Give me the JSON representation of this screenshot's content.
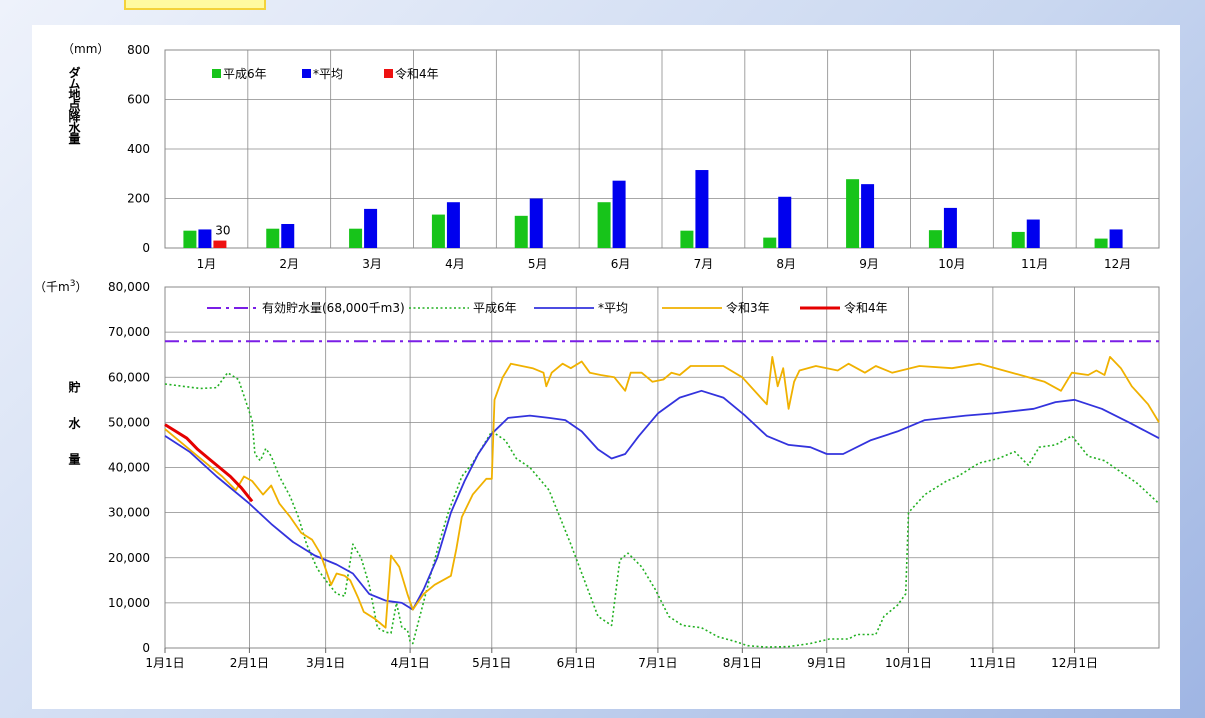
{
  "chart_data": [
    {
      "type": "bar",
      "ylabel": "ダム地点降水量",
      "yunit": "（mm）",
      "ylim": [
        0,
        800
      ],
      "yticks": [
        "0",
        "200",
        "400",
        "600",
        "800"
      ],
      "categories": [
        "1月",
        "2月",
        "3月",
        "4月",
        "5月",
        "6月",
        "7月",
        "8月",
        "9月",
        "10月",
        "11月",
        "12月"
      ],
      "series": [
        {
          "name": "平成6年",
          "color": "#17c41a",
          "values": [
            70,
            78,
            78,
            135,
            130,
            185,
            70,
            42,
            278,
            72,
            65,
            38
          ]
        },
        {
          "name": "*平均",
          "color": "#0000ee",
          "values": [
            75,
            97,
            158,
            185,
            200,
            272,
            315,
            207,
            258,
            162,
            115,
            75
          ]
        },
        {
          "name": "令和4年",
          "color": "#ee1111",
          "values": [
            30,
            null,
            null,
            null,
            null,
            null,
            null,
            null,
            null,
            null,
            null,
            null
          ]
        }
      ],
      "data_labels": [
        {
          "series": "令和4年",
          "category": "1月",
          "text": "30"
        }
      ],
      "grid": true,
      "legend_position": "top-left"
    },
    {
      "type": "line",
      "ylabel": "貯水量",
      "yunit_prefix": "（千m",
      "yunit_sup": "3",
      "yunit_suffix": "）",
      "ylim": [
        0,
        80000
      ],
      "yticks": [
        "0",
        "10,000",
        "20,000",
        "30,000",
        "40,000",
        "50,000",
        "60,000",
        "70,000",
        "80,000"
      ],
      "xticks": [
        "1月1日",
        "2月1日",
        "3月1日",
        "4月1日",
        "5月1日",
        "6月1日",
        "7月1日",
        "8月1日",
        "9月1日",
        "10月1日",
        "11月1日",
        "12月1日"
      ],
      "xtick_days": [
        1,
        32,
        60,
        91,
        121,
        152,
        182,
        213,
        244,
        274,
        305,
        335
      ],
      "xlim_days": [
        1,
        366
      ],
      "grid": true,
      "legend_position": "top",
      "series": [
        {
          "name": "有効貯水量(68,000千m3)",
          "color": "#7a1ee6",
          "style": "dashdot",
          "points": [
            [
              1,
              68000
            ],
            [
              366,
              68000
            ]
          ]
        },
        {
          "name": "平成6年",
          "color": "#22b022",
          "style": "dotted",
          "points": [
            [
              1,
              58500
            ],
            [
              14,
              57500
            ],
            [
              20,
              57700
            ],
            [
              24,
              61000
            ],
            [
              28,
              59500
            ],
            [
              33,
              50500
            ],
            [
              34,
              43000
            ],
            [
              36,
              41500
            ],
            [
              38,
              44200
            ],
            [
              40,
              42500
            ],
            [
              43,
              38000
            ],
            [
              47,
              33500
            ],
            [
              50,
              29000
            ],
            [
              53,
              23000
            ],
            [
              57,
              17500
            ],
            [
              60,
              15000
            ],
            [
              64,
              12000
            ],
            [
              67,
              11500
            ],
            [
              70,
              23000
            ],
            [
              73,
              20000
            ],
            [
              76,
              14000
            ],
            [
              79,
              4500
            ],
            [
              82,
              3500
            ],
            [
              84,
              3300
            ],
            [
              86,
              10000
            ],
            [
              88,
              4500
            ],
            [
              90,
              4000
            ],
            [
              91,
              1500
            ],
            [
              92,
              1000
            ],
            [
              95,
              8000
            ],
            [
              98,
              15000
            ],
            [
              102,
              24000
            ],
            [
              105,
              30000
            ],
            [
              110,
              38000
            ],
            [
              114,
              41000
            ],
            [
              121,
              48000
            ],
            [
              126,
              46000
            ],
            [
              130,
              42000
            ],
            [
              135,
              40000
            ],
            [
              142,
              35000
            ],
            [
              146,
              29000
            ],
            [
              150,
              23000
            ],
            [
              155,
              15000
            ],
            [
              160,
              7000
            ],
            [
              165,
              5000
            ],
            [
              168,
              19500
            ],
            [
              171,
              21000
            ],
            [
              176,
              18000
            ],
            [
              181,
              13000
            ],
            [
              186,
              7000
            ],
            [
              191,
              5000
            ],
            [
              198,
              4500
            ],
            [
              204,
              2500
            ],
            [
              210,
              1500
            ],
            [
              215,
              500
            ],
            [
              222,
              200
            ],
            [
              230,
              300
            ],
            [
              238,
              1000
            ],
            [
              245,
              2000
            ],
            [
              252,
              2000
            ],
            [
              255,
              3000
            ],
            [
              262,
              3000
            ],
            [
              265,
              7000
            ],
            [
              270,
              9500
            ],
            [
              273,
              12000
            ],
            [
              274,
              30000
            ],
            [
              280,
              34000
            ],
            [
              288,
              37000
            ],
            [
              292,
              38000
            ],
            [
              300,
              41000
            ],
            [
              307,
              42000
            ],
            [
              313,
              43500
            ],
            [
              318,
              40500
            ],
            [
              322,
              44500
            ],
            [
              328,
              45000
            ],
            [
              334,
              47000
            ],
            [
              340,
              42500
            ],
            [
              346,
              41500
            ],
            [
              352,
              39000
            ],
            [
              358,
              36500
            ],
            [
              366,
              32000
            ]
          ]
        },
        {
          "name": "*平均",
          "color": "#3333dd",
          "style": "solid",
          "points": [
            [
              1,
              47000
            ],
            [
              10,
              43500
            ],
            [
              20,
              38000
            ],
            [
              32,
              32000
            ],
            [
              40,
              27500
            ],
            [
              48,
              23500
            ],
            [
              56,
              20500
            ],
            [
              64,
              18500
            ],
            [
              70,
              16500
            ],
            [
              76,
              12000
            ],
            [
              82,
              10500
            ],
            [
              88,
              10000
            ],
            [
              92,
              8500
            ],
            [
              96,
              13000
            ],
            [
              101,
              20000
            ],
            [
              106,
              30000
            ],
            [
              111,
              37000
            ],
            [
              116,
              43000
            ],
            [
              121,
              47500
            ],
            [
              127,
              51000
            ],
            [
              135,
              51500
            ],
            [
              142,
              51000
            ],
            [
              148,
              50500
            ],
            [
              154,
              48000
            ],
            [
              160,
              44000
            ],
            [
              165,
              42000
            ],
            [
              170,
              43000
            ],
            [
              175,
              47000
            ],
            [
              182,
              52000
            ],
            [
              190,
              55500
            ],
            [
              198,
              57000
            ],
            [
              206,
              55500
            ],
            [
              214,
              51500
            ],
            [
              222,
              47000
            ],
            [
              230,
              45000
            ],
            [
              238,
              44500
            ],
            [
              244,
              43000
            ],
            [
              250,
              43000
            ],
            [
              260,
              46000
            ],
            [
              270,
              48000
            ],
            [
              280,
              50500
            ],
            [
              295,
              51500
            ],
            [
              305,
              52000
            ],
            [
              320,
              53000
            ],
            [
              328,
              54500
            ],
            [
              335,
              55000
            ],
            [
              345,
              53000
            ],
            [
              355,
              50000
            ],
            [
              366,
              46500
            ]
          ]
        },
        {
          "name": "令和3年",
          "color": "#f0b100",
          "style": "solid",
          "points": [
            [
              1,
              48500
            ],
            [
              8,
              45000
            ],
            [
              15,
              41500
            ],
            [
              22,
              38000
            ],
            [
              27,
              35000
            ],
            [
              30,
              38000
            ],
            [
              33,
              37000
            ],
            [
              37,
              34000
            ],
            [
              40,
              36000
            ],
            [
              43,
              32000
            ],
            [
              47,
              29000
            ],
            [
              51,
              25500
            ],
            [
              55,
              24000
            ],
            [
              58,
              21000
            ],
            [
              62,
              14000
            ],
            [
              64,
              16500
            ],
            [
              67,
              16000
            ],
            [
              69,
              15000
            ],
            [
              72,
              11000
            ],
            [
              74,
              8000
            ],
            [
              78,
              6500
            ],
            [
              82,
              4500
            ],
            [
              84,
              20500
            ],
            [
              87,
              18000
            ],
            [
              90,
              12000
            ],
            [
              92,
              8500
            ],
            [
              96,
              12000
            ],
            [
              100,
              14000
            ],
            [
              103,
              15000
            ],
            [
              106,
              16000
            ],
            [
              108,
              22000
            ],
            [
              110,
              29000
            ],
            [
              114,
              34000
            ],
            [
              119,
              37500
            ],
            [
              121,
              37500
            ],
            [
              122,
              55000
            ],
            [
              125,
              60000
            ],
            [
              128,
              63000
            ],
            [
              136,
              62000
            ],
            [
              140,
              61000
            ],
            [
              141,
              58000
            ],
            [
              143,
              61000
            ],
            [
              147,
              63000
            ],
            [
              150,
              62000
            ],
            [
              154,
              63500
            ],
            [
              157,
              61000
            ],
            [
              161,
              60500
            ],
            [
              166,
              60000
            ],
            [
              170,
              57000
            ],
            [
              172,
              61000
            ],
            [
              176,
              61000
            ],
            [
              180,
              59000
            ],
            [
              184,
              59500
            ],
            [
              187,
              61000
            ],
            [
              190,
              60500
            ],
            [
              194,
              62500
            ],
            [
              200,
              62500
            ],
            [
              206,
              62500
            ],
            [
              213,
              60000
            ],
            [
              222,
              54000
            ],
            [
              224,
              64500
            ],
            [
              226,
              58000
            ],
            [
              228,
              62000
            ],
            [
              230,
              53000
            ],
            [
              232,
              59000
            ],
            [
              234,
              61500
            ],
            [
              240,
              62500
            ],
            [
              248,
              61500
            ],
            [
              252,
              63000
            ],
            [
              258,
              61000
            ],
            [
              262,
              62500
            ],
            [
              268,
              61000
            ],
            [
              278,
              62500
            ],
            [
              290,
              62000
            ],
            [
              300,
              63000
            ],
            [
              312,
              61000
            ],
            [
              318,
              60000
            ],
            [
              324,
              59000
            ],
            [
              330,
              57000
            ],
            [
              334,
              61000
            ],
            [
              340,
              60500
            ],
            [
              343,
              61500
            ],
            [
              346,
              60500
            ],
            [
              348,
              64500
            ],
            [
              352,
              62000
            ],
            [
              356,
              58000
            ],
            [
              362,
              54000
            ],
            [
              366,
              50000
            ]
          ]
        },
        {
          "name": "令和4年",
          "color": "#e50000",
          "style": "solid",
          "points": [
            [
              1,
              49500
            ],
            [
              5,
              48000
            ],
            [
              9,
              46500
            ],
            [
              13,
              44000
            ],
            [
              17,
              42000
            ],
            [
              21,
              40000
            ],
            [
              25,
              38000
            ],
            [
              29,
              35500
            ],
            [
              33,
              32500
            ]
          ]
        }
      ]
    }
  ]
}
